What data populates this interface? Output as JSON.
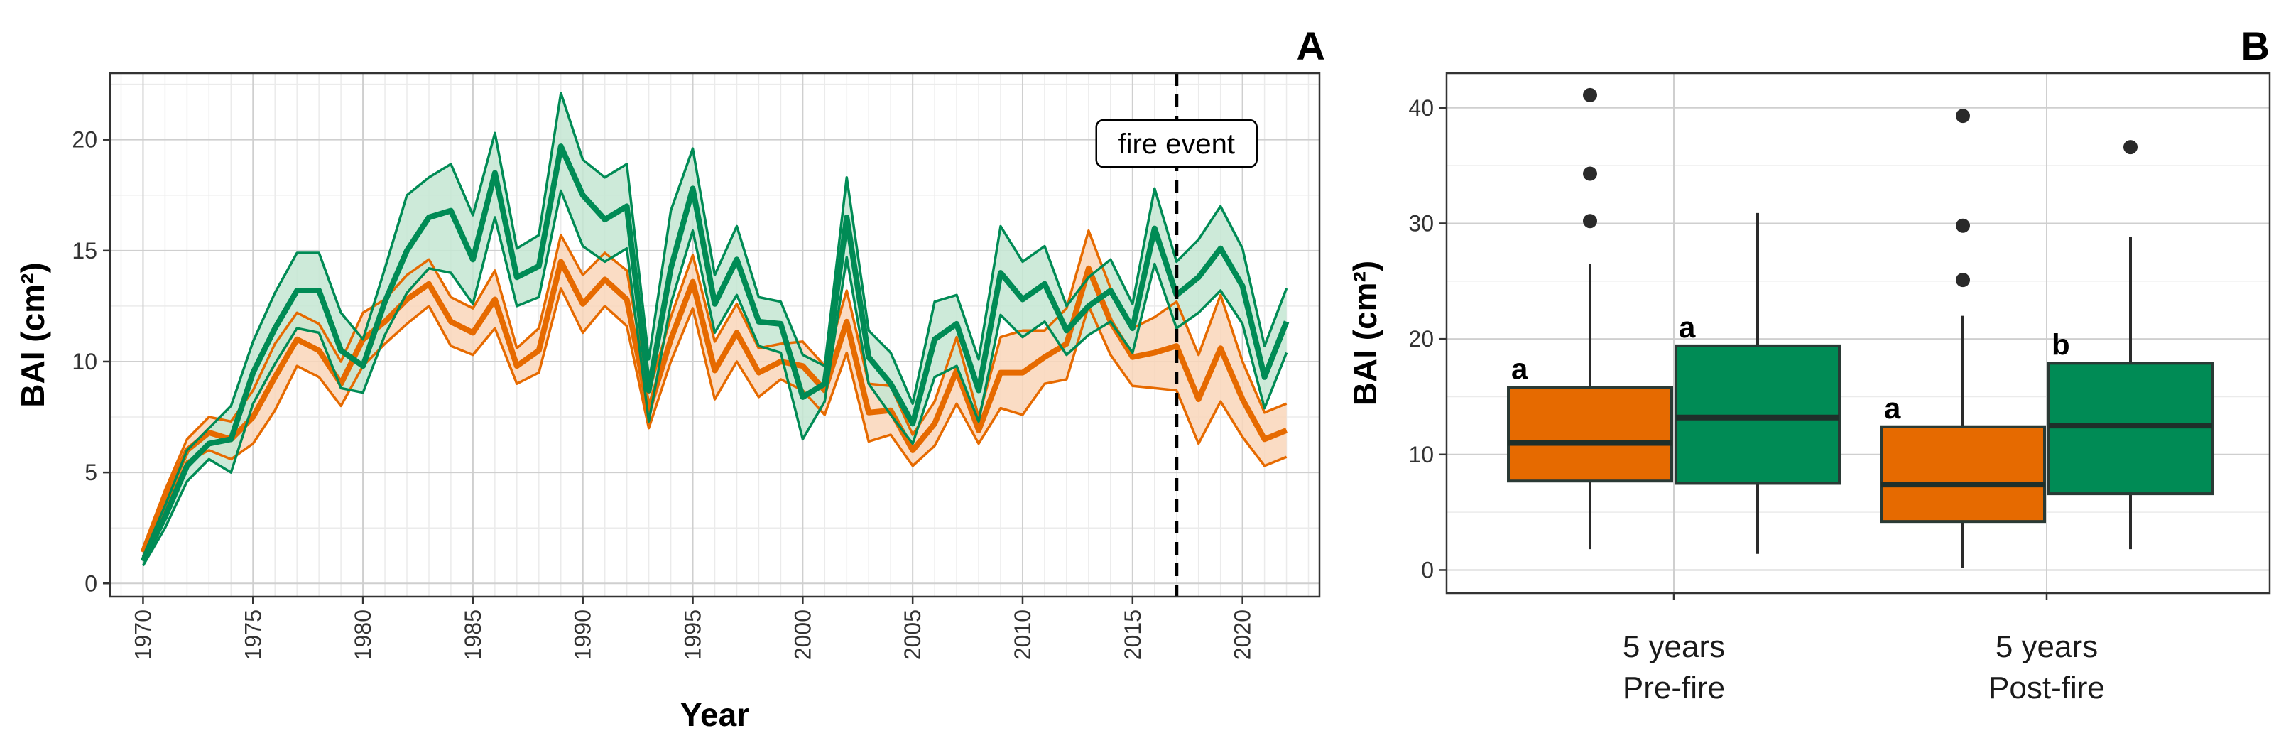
{
  "chart_data": [
    {
      "type": "line",
      "panel_label": "A",
      "xlabel": "Year",
      "ylabel": "BAI (cm²)",
      "xlim": [
        1968.5,
        2023.5
      ],
      "ylim": [
        -0.6,
        23.0
      ],
      "x_ticks": [
        1970,
        1975,
        1980,
        1985,
        1990,
        1995,
        2000,
        2005,
        2010,
        2015,
        2020
      ],
      "y_ticks": [
        0,
        5,
        10,
        15,
        20
      ],
      "grid": true,
      "annotation": {
        "text": "fire event",
        "x": 2017
      },
      "colors": {
        "orange": "#E66A00",
        "green": "#008B55",
        "orange_fill": "#F9D6BA",
        "green_fill": "#C4E6D2"
      },
      "x": [
        1970,
        1971,
        1972,
        1973,
        1974,
        1975,
        1976,
        1977,
        1978,
        1979,
        1980,
        1981,
        1982,
        1983,
        1984,
        1985,
        1986,
        1987,
        1988,
        1989,
        1990,
        1991,
        1992,
        1993,
        1994,
        1995,
        1996,
        1997,
        1998,
        1999,
        2000,
        2001,
        2002,
        2003,
        2004,
        2005,
        2006,
        2007,
        2008,
        2009,
        2010,
        2011,
        2012,
        2013,
        2014,
        2015,
        2016,
        2017,
        2018,
        2019,
        2020,
        2021,
        2022
      ],
      "series": [
        {
          "color_key": "orange",
          "mean": [
            1.4,
            3.8,
            6.0,
            6.8,
            6.5,
            7.5,
            9.3,
            11.0,
            10.5,
            9.0,
            11.0,
            11.8,
            12.8,
            13.5,
            11.8,
            11.3,
            12.8,
            9.8,
            10.5,
            14.5,
            12.6,
            13.7,
            12.8,
            7.8,
            11.0,
            13.6,
            9.6,
            11.3,
            9.5,
            10.0,
            9.8,
            8.7,
            11.8,
            7.7,
            7.8,
            6.0,
            7.2,
            9.6,
            6.9,
            9.5,
            9.5,
            10.2,
            10.8,
            14.2,
            11.8,
            10.2,
            10.4,
            10.7,
            8.3,
            10.6,
            8.3,
            6.5,
            6.9
          ],
          "lower": [
            1.2,
            3.4,
            5.5,
            6.0,
            5.6,
            6.3,
            7.8,
            9.8,
            9.3,
            8.0,
            9.8,
            10.8,
            11.7,
            12.5,
            10.7,
            10.3,
            11.5,
            9.0,
            9.5,
            13.3,
            11.3,
            12.5,
            11.6,
            7.0,
            10.0,
            12.4,
            8.3,
            10.0,
            8.4,
            9.2,
            8.7,
            7.6,
            10.4,
            6.4,
            6.7,
            5.3,
            6.2,
            8.1,
            6.3,
            7.9,
            7.6,
            9.0,
            9.2,
            12.5,
            10.3,
            8.9,
            8.8,
            8.7,
            6.3,
            8.2,
            6.6,
            5.3,
            5.7
          ],
          "upper": [
            1.6,
            4.2,
            6.5,
            7.5,
            7.3,
            8.7,
            10.8,
            12.2,
            11.7,
            10.0,
            12.2,
            12.8,
            13.9,
            14.6,
            12.9,
            12.4,
            14.1,
            10.6,
            11.5,
            15.7,
            13.9,
            14.9,
            14.1,
            8.6,
            12.0,
            14.8,
            10.9,
            12.6,
            10.6,
            10.8,
            10.9,
            9.8,
            13.2,
            9.0,
            8.9,
            6.7,
            8.2,
            11.1,
            7.5,
            11.1,
            11.4,
            11.4,
            12.4,
            15.9,
            13.3,
            11.5,
            12.0,
            12.7,
            10.3,
            13.0,
            10.0,
            7.7,
            8.1
          ]
        },
        {
          "color_key": "green",
          "mean": [
            1.0,
            3.0,
            5.3,
            6.3,
            6.5,
            9.5,
            11.5,
            13.2,
            13.2,
            10.5,
            9.8,
            12.7,
            15.0,
            16.5,
            16.8,
            14.6,
            18.5,
            13.8,
            14.3,
            19.7,
            17.5,
            16.4,
            17.0,
            8.7,
            14.2,
            17.8,
            12.6,
            14.6,
            11.8,
            11.7,
            8.4,
            9.0,
            16.5,
            10.2,
            9.0,
            7.2,
            11.0,
            11.7,
            8.7,
            14.0,
            12.8,
            13.5,
            11.4,
            12.5,
            13.2,
            11.5,
            16.0,
            13.0,
            13.8,
            15.1,
            13.4,
            9.3,
            11.8
          ],
          "lower": [
            0.8,
            2.5,
            4.6,
            5.6,
            5.0,
            8.1,
            9.9,
            11.5,
            11.3,
            8.8,
            8.6,
            11.2,
            13.1,
            14.2,
            14.0,
            12.6,
            16.5,
            12.5,
            12.9,
            17.7,
            15.2,
            14.5,
            15.1,
            7.3,
            12.6,
            15.9,
            11.3,
            13.0,
            10.7,
            10.4,
            6.5,
            8.2,
            14.7,
            9.0,
            7.6,
            6.3,
            9.3,
            9.8,
            7.3,
            12.1,
            11.1,
            11.8,
            10.3,
            11.2,
            11.8,
            10.4,
            14.4,
            11.5,
            12.2,
            13.2,
            11.7,
            7.9,
            10.4
          ],
          "upper": [
            1.2,
            3.5,
            6.0,
            7.0,
            8.0,
            10.9,
            13.1,
            14.9,
            14.9,
            12.2,
            11.0,
            14.2,
            17.5,
            18.3,
            18.9,
            16.6,
            20.3,
            15.1,
            15.7,
            22.1,
            19.1,
            18.3,
            18.9,
            10.1,
            16.8,
            19.6,
            13.9,
            16.1,
            12.9,
            12.7,
            10.3,
            9.8,
            18.3,
            11.4,
            10.4,
            8.1,
            12.7,
            13.0,
            10.1,
            16.1,
            14.5,
            15.2,
            12.5,
            13.8,
            14.6,
            12.6,
            17.8,
            14.5,
            15.5,
            17.0,
            15.1,
            10.7,
            13.3
          ]
        }
      ]
    },
    {
      "type": "box",
      "panel_label": "B",
      "ylabel": "BAI (cm²)",
      "ylim": [
        -2.0,
        43.0
      ],
      "y_ticks": [
        0,
        10,
        20,
        30,
        40
      ],
      "grid": true,
      "categories": [
        "5 years\nPre-fire",
        "5 years\nPost-fire"
      ],
      "category_lines": [
        [
          "5 years",
          "Pre-fire"
        ],
        [
          "5 years",
          "Post-fire"
        ]
      ],
      "boxes": [
        {
          "category": 0,
          "color_key": "orange",
          "q1": 7.7,
          "median": 11.0,
          "q3": 15.8,
          "whisker_low": 1.8,
          "whisker_high": 26.5,
          "outliers": [
            30.2,
            34.3,
            41.1
          ],
          "letter": "a"
        },
        {
          "category": 0,
          "color_key": "green",
          "q1": 7.5,
          "median": 13.2,
          "q3": 19.4,
          "whisker_low": 1.4,
          "whisker_high": 30.9,
          "outliers": [],
          "letter": "a"
        },
        {
          "category": 1,
          "color_key": "orange",
          "q1": 4.2,
          "median": 7.4,
          "q3": 12.4,
          "whisker_low": 0.2,
          "whisker_high": 22.0,
          "outliers": [
            25.1,
            29.8,
            39.3
          ],
          "letter": "a"
        },
        {
          "category": 1,
          "color_key": "green",
          "q1": 6.6,
          "median": 12.5,
          "q3": 17.9,
          "whisker_low": 1.8,
          "whisker_high": 28.8,
          "outliers": [
            36.6
          ],
          "letter": "b"
        }
      ],
      "colors": {
        "orange": "#E66A00",
        "green": "#008B55"
      }
    }
  ]
}
